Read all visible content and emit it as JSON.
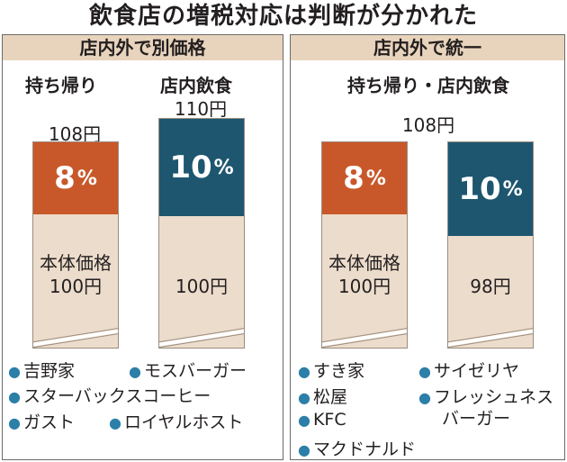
{
  "title": "飲食店の増税対応は判断が分かれた",
  "colors": {
    "tax8": "#c8582a",
    "tax10": "#1e5670",
    "base": "#ecdccb",
    "header": "#e8d3bc",
    "bullet": "#2b7fa8"
  },
  "left": {
    "header": "店内外で別価格",
    "takeout": {
      "label": "持ち帰り",
      "price": "108円",
      "tax_num": "8",
      "tax_unit": "%",
      "base_label_1": "本体価格",
      "base_label_2": "100円"
    },
    "eatin": {
      "label": "店内飲食",
      "price": "110円",
      "tax_num": "10",
      "tax_unit": "%",
      "base_label": "100円"
    },
    "stores": [
      "吉野家",
      "モスバーガー",
      "スターバックスコーヒー",
      "ガスト",
      "ロイヤルホスト"
    ]
  },
  "right": {
    "header": "店内外で統一",
    "sublabel": "持ち帰り・店内飲食",
    "price": "108円",
    "takeout": {
      "tax_num": "8",
      "tax_unit": "%",
      "base_label_1": "本体価格",
      "base_label_2": "100円"
    },
    "eatin": {
      "tax_num": "10",
      "tax_unit": "%",
      "base_label": "98円"
    },
    "stores": [
      "すき家",
      "サイゼリヤ",
      "松屋",
      "フレッシュネス",
      "バーガー",
      "KFC",
      "マクドナルド"
    ]
  },
  "chart_data": {
    "type": "bar",
    "stacked": true,
    "panels": [
      {
        "title": "店内外で別価格",
        "categories": [
          "持ち帰り",
          "店内飲食"
        ],
        "totals": [
          108,
          110
        ],
        "series": [
          {
            "name": "本体価格",
            "values": [
              100,
              100
            ]
          },
          {
            "name": "tax",
            "values": [
              8,
              10
            ]
          }
        ],
        "tax_rates": [
          "8%",
          "10%"
        ]
      },
      {
        "title": "店内外で統一",
        "categories": [
          "持ち帰り",
          "店内飲食"
        ],
        "totals": [
          108,
          108
        ],
        "series": [
          {
            "name": "本体価格",
            "values": [
              100,
              98
            ]
          },
          {
            "name": "tax",
            "values": [
              8,
              10
            ]
          }
        ],
        "tax_rates": [
          "8%",
          "10%"
        ]
      }
    ]
  }
}
